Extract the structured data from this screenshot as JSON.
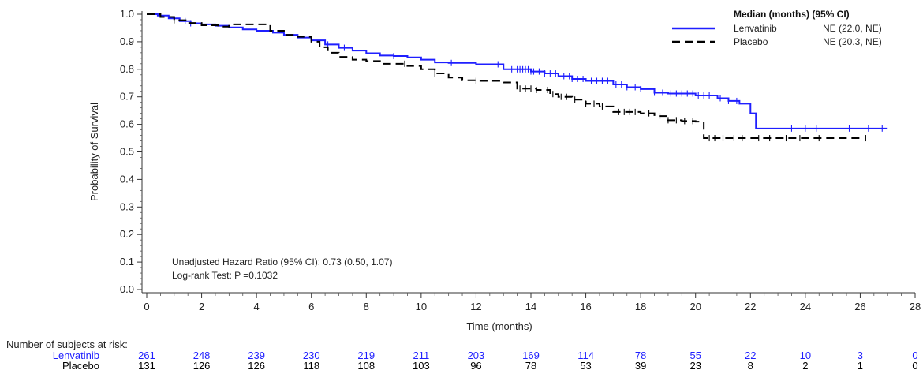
{
  "chart_data": {
    "type": "line",
    "ylabel": "Probability of Survival",
    "xlabel": "Time (months)",
    "xlim": [
      0,
      28
    ],
    "ylim": [
      0,
      1
    ],
    "x_ticks": [
      0,
      2,
      4,
      6,
      8,
      10,
      12,
      14,
      16,
      18,
      20,
      22,
      24,
      26,
      28
    ],
    "y_ticks": [
      "0.0",
      "0.1",
      "0.2",
      "0.3",
      "0.4",
      "0.5",
      "0.6",
      "0.7",
      "0.8",
      "0.9",
      "1.0"
    ],
    "legend": {
      "position": "top-right",
      "title": "Median (months) (95% CI)",
      "entries": [
        {
          "name": "Lenvatinib",
          "median": "NE (22.0, NE)",
          "color": "#1f1fff",
          "style": "solid"
        },
        {
          "name": "Placebo",
          "median": "NE (20.3, NE)",
          "color": "#000000",
          "style": "dashed"
        }
      ]
    },
    "annotations": [
      "Unadjusted Hazard Ratio (95% CI): 0.73 (0.50, 1.07)",
      "Log-rank Test: P =0.1032"
    ],
    "series": [
      {
        "name": "Lenvatinib",
        "color": "#1f1fff",
        "style": "solid",
        "points": [
          [
            0,
            1.0
          ],
          [
            0.4,
            0.995
          ],
          [
            0.8,
            0.985
          ],
          [
            1.2,
            0.975
          ],
          [
            1.6,
            0.967
          ],
          [
            2.0,
            0.963
          ],
          [
            2.5,
            0.958
          ],
          [
            3.0,
            0.952
          ],
          [
            3.5,
            0.945
          ],
          [
            4.0,
            0.94
          ],
          [
            4.6,
            0.933
          ],
          [
            5.0,
            0.925
          ],
          [
            5.5,
            0.915
          ],
          [
            6.0,
            0.905
          ],
          [
            6.5,
            0.89
          ],
          [
            7.0,
            0.878
          ],
          [
            7.5,
            0.868
          ],
          [
            8.0,
            0.858
          ],
          [
            8.5,
            0.85
          ],
          [
            9.0,
            0.848
          ],
          [
            9.5,
            0.843
          ],
          [
            10.0,
            0.835
          ],
          [
            10.5,
            0.825
          ],
          [
            11.0,
            0.823
          ],
          [
            12.0,
            0.818
          ],
          [
            13.0,
            0.8
          ],
          [
            14.0,
            0.792
          ],
          [
            14.5,
            0.785
          ],
          [
            15.0,
            0.775
          ],
          [
            15.5,
            0.765
          ],
          [
            16.0,
            0.758
          ],
          [
            17.0,
            0.745
          ],
          [
            17.5,
            0.735
          ],
          [
            18.0,
            0.728
          ],
          [
            18.5,
            0.715
          ],
          [
            19.0,
            0.712
          ],
          [
            20.0,
            0.705
          ],
          [
            20.8,
            0.695
          ],
          [
            21.2,
            0.685
          ],
          [
            21.6,
            0.675
          ],
          [
            22.0,
            0.64
          ],
          [
            22.2,
            0.585
          ],
          [
            27.0,
            0.585
          ]
        ],
        "censor_times": [
          1.4,
          1.6,
          6.6,
          7.2,
          9.0,
          11.1,
          12.8,
          13.3,
          13.5,
          13.6,
          13.7,
          13.8,
          13.9,
          14.0,
          14.1,
          14.3,
          14.5,
          14.7,
          14.9,
          15.2,
          15.4,
          15.5,
          15.7,
          15.9,
          16.2,
          16.4,
          16.6,
          16.8,
          17.1,
          17.3,
          17.5,
          17.8,
          18.0,
          18.5,
          18.8,
          19.1,
          19.3,
          19.5,
          19.7,
          19.9,
          20.1,
          20.3,
          20.5,
          20.9,
          21.2,
          21.5,
          23.5,
          24.0,
          24.4,
          25.6,
          26.3,
          26.8
        ]
      },
      {
        "name": "Placebo",
        "color": "#000000",
        "style": "dashed",
        "points": [
          [
            0,
            1.0
          ],
          [
            0.5,
            0.99
          ],
          [
            1.0,
            0.978
          ],
          [
            1.5,
            0.968
          ],
          [
            2.0,
            0.96
          ],
          [
            2.6,
            0.955
          ],
          [
            3.0,
            0.963
          ],
          [
            4.0,
            0.963
          ],
          [
            4.5,
            0.94
          ],
          [
            5.0,
            0.925
          ],
          [
            5.5,
            0.918
          ],
          [
            6.0,
            0.9
          ],
          [
            6.3,
            0.88
          ],
          [
            6.6,
            0.86
          ],
          [
            7.0,
            0.845
          ],
          [
            7.5,
            0.835
          ],
          [
            8.0,
            0.83
          ],
          [
            8.5,
            0.82
          ],
          [
            9.5,
            0.812
          ],
          [
            10.0,
            0.8
          ],
          [
            10.5,
            0.785
          ],
          [
            11.0,
            0.77
          ],
          [
            11.5,
            0.76
          ],
          [
            12.0,
            0.758
          ],
          [
            13.0,
            0.752
          ],
          [
            13.5,
            0.73
          ],
          [
            14.2,
            0.725
          ],
          [
            14.7,
            0.71
          ],
          [
            15.0,
            0.7
          ],
          [
            15.5,
            0.69
          ],
          [
            16.0,
            0.675
          ],
          [
            16.5,
            0.665
          ],
          [
            17.0,
            0.645
          ],
          [
            18.0,
            0.64
          ],
          [
            18.5,
            0.63
          ],
          [
            19.0,
            0.615
          ],
          [
            19.5,
            0.612
          ],
          [
            20.0,
            0.61
          ],
          [
            20.3,
            0.55
          ],
          [
            26.0,
            0.55
          ]
        ],
        "censor_times": [
          1.0,
          9.4,
          10.5,
          12.0,
          13.6,
          13.8,
          14.0,
          14.2,
          14.6,
          14.8,
          15.1,
          15.3,
          15.6,
          16.0,
          16.3,
          16.6,
          17.2,
          17.4,
          17.6,
          17.8,
          18.3,
          18.7,
          19.0,
          19.3,
          19.6,
          19.9,
          20.5,
          20.7,
          21.0,
          21.4,
          21.7,
          22.3,
          22.7,
          23.3,
          23.8,
          24.5,
          26.2
        ]
      }
    ],
    "risk_table": {
      "title": "Number of subjects at risk:",
      "times": [
        0,
        2,
        4,
        6,
        8,
        10,
        12,
        14,
        16,
        18,
        20,
        22,
        24,
        26,
        28
      ],
      "rows": [
        {
          "name": "Lenvatinib",
          "color": "#1f1fff",
          "values": [
            "261",
            "248",
            "239",
            "230",
            "219",
            "211",
            "203",
            "169",
            "114",
            "78",
            "55",
            "22",
            "10",
            "3",
            "0"
          ]
        },
        {
          "name": "Placebo",
          "color": "#000000",
          "values": [
            "131",
            "126",
            "126",
            "118",
            "108",
            "103",
            "96",
            "78",
            "53",
            "39",
            "23",
            "8",
            "2",
            "1",
            "0"
          ]
        }
      ]
    }
  }
}
